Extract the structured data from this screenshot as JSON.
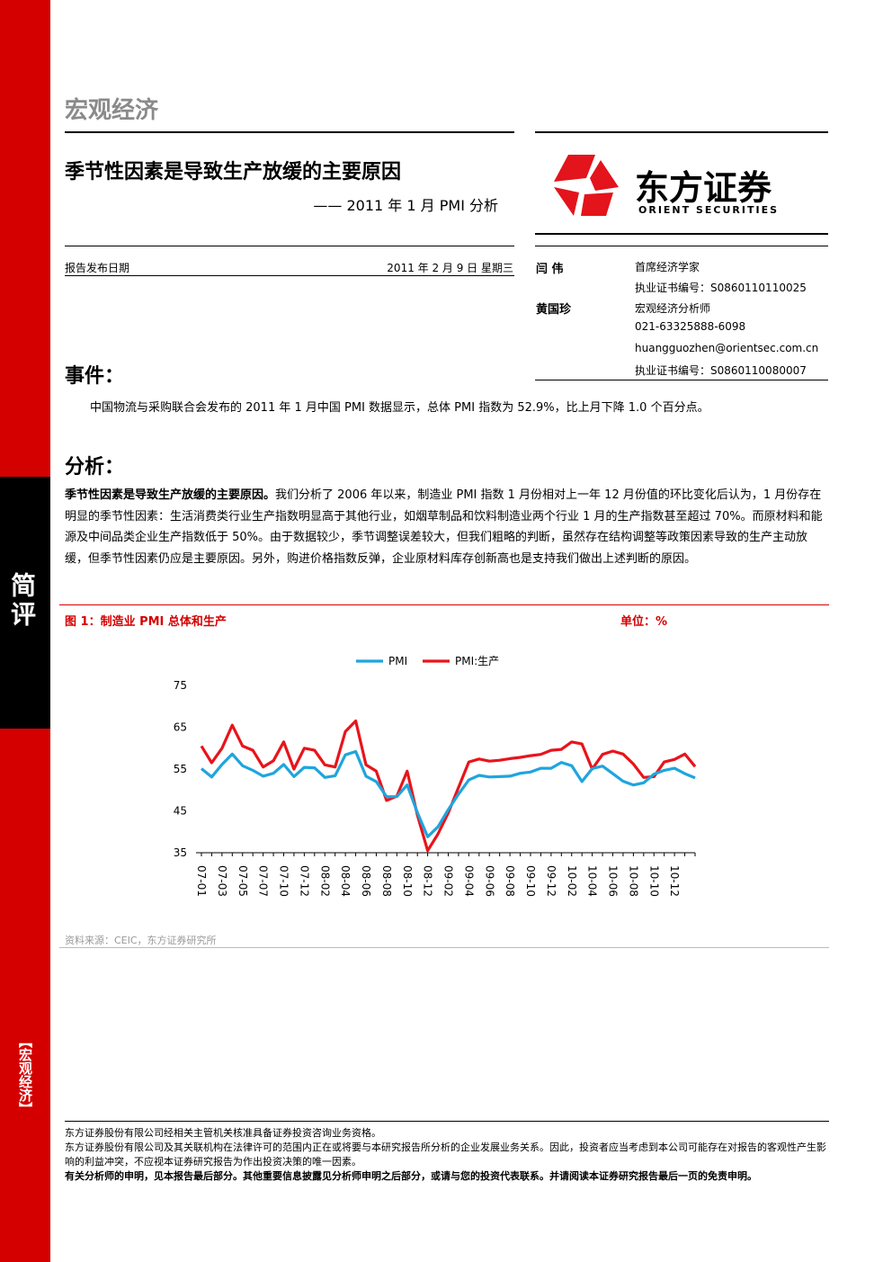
{
  "header": {
    "section": "宏观经济",
    "title": "季节性因素是导致生产放缓的主要原因",
    "subtitle": "—— 2011 年 1 月 PMI 分析",
    "logo_cn": "东方证券",
    "logo_en": "ORIENT SECURITIES"
  },
  "meta": {
    "date_label": "报告发布日期",
    "date": "2011 年 2 月 9 日 星期三"
  },
  "analysts": [
    {
      "name": "闫 伟",
      "lines": [
        "首席经济学家",
        "执业证书编号：S0860110110025"
      ]
    },
    {
      "name": "黄国珍",
      "lines": [
        "宏观经济分析师",
        "021-63325888-6098",
        "huangguozhen@orientsec.com.cn",
        "执业证书编号：S0860110080007"
      ]
    }
  ],
  "event": {
    "heading": "事件：",
    "text": "中国物流与采购联合会发布的 2011 年 1 月中国 PMI 数据显示，总体 PMI 指数为 52.9%，比上月下降 1.0 个百分点。"
  },
  "analysis": {
    "heading": "分析：",
    "lead": "季节性因素是导致生产放缓的主要原因。",
    "text": "我们分析了 2006 年以来，制造业 PMI 指数 1 月份相对上一年 12 月份值的环比变化后认为，1 月份存在明显的季节性因素：生活消费类行业生产指数明显高于其他行业，如烟草制品和饮料制造业两个行业 1 月的生产指数甚至超过 70%。而原材料和能源及中间品类企业生产指数低于 50%。由于数据较少，季节调整误差较大，但我们粗略的判断，虽然存在结构调整等政策因素导致的生产主动放缓，但季节性因素仍应是主要原因。另外，购进价格指数反弹，企业原材料库存创新高也是支持我们做出上述判断的原因。"
  },
  "figure": {
    "title": "图 1：制造业 PMI 总体和生产",
    "unit": "单位：%",
    "source": "资料来源：CEIC，东方证券研究所"
  },
  "chart_data": {
    "type": "line",
    "categories": [
      "07-01",
      null,
      "07-03",
      null,
      "07-05",
      null,
      "07-07",
      null,
      "07-10",
      null,
      "07-12",
      null,
      "08-02",
      null,
      "08-04",
      null,
      "08-06",
      null,
      "08-08",
      null,
      "08-10",
      null,
      "08-12",
      null,
      "09-02",
      null,
      "09-04",
      null,
      "09-06",
      null,
      "09-08",
      null,
      "09-10",
      null,
      "09-12",
      null,
      "10-02",
      null,
      "10-04",
      null,
      "10-06",
      null,
      "10-08",
      null,
      "10-10",
      null,
      "10-12",
      null,
      null
    ],
    "series": [
      {
        "name": "PMI",
        "color": "#1fa5dd",
        "values": [
          55.1,
          53.1,
          56.1,
          58.6,
          55.8,
          54.7,
          53.3,
          54.0,
          56.1,
          53.2,
          55.4,
          55.3,
          53.0,
          53.4,
          58.4,
          59.2,
          53.3,
          52.0,
          48.4,
          48.4,
          51.2,
          44.6,
          38.8,
          41.2,
          45.3,
          49.0,
          52.4,
          53.5,
          53.1,
          53.2,
          53.3,
          54.0,
          54.3,
          55.2,
          55.2,
          56.6,
          55.8,
          52.0,
          55.1,
          55.7,
          53.9,
          52.1,
          51.2,
          51.7,
          53.8,
          54.7,
          55.2,
          53.9,
          52.9
        ]
      },
      {
        "name": "PMI:生产",
        "color": "#e8141b",
        "values": [
          60.5,
          56.5,
          60.0,
          65.5,
          60.5,
          59.5,
          55.5,
          57.0,
          61.5,
          55.0,
          60.0,
          59.5,
          56.0,
          55.5,
          64.0,
          66.5,
          56.0,
          54.5,
          47.5,
          48.5,
          54.5,
          44.0,
          35.5,
          39.5,
          44.5,
          50.6,
          56.7,
          57.4,
          56.9,
          57.1,
          57.5,
          57.8,
          58.2,
          58.5,
          59.5,
          59.7,
          61.5,
          61.0,
          55.0,
          58.5,
          59.3,
          58.6,
          56.2,
          53.0,
          53.2,
          56.7,
          57.3,
          58.6,
          55.6
        ]
      }
    ],
    "ylim": [
      35,
      75
    ],
    "yticks": [
      35,
      45,
      55,
      65,
      75
    ]
  },
  "sidebar": {
    "type": "简评",
    "section": "【宏观经济】"
  },
  "footer": [
    "东方证券股份有限公司经相关主管机关核准具备证券投资咨询业务资格。",
    "东方证券股份有限公司及其关联机构在法律许可的范围内正在或将要与本研究报告所分析的企业发展业务关系。因此，投资者应当考虑到本公司可能存在对报告的客观性产生影响的利益冲突，不应视本证券研究报告为作出投资决策的唯一因素。",
    "有关分析师的申明，见本报告最后部分。其他重要信息披露见分析师申明之后部分，或请与您的投资代表联系。并请阅读本证券研究报告最后一页的免责申明。"
  ]
}
